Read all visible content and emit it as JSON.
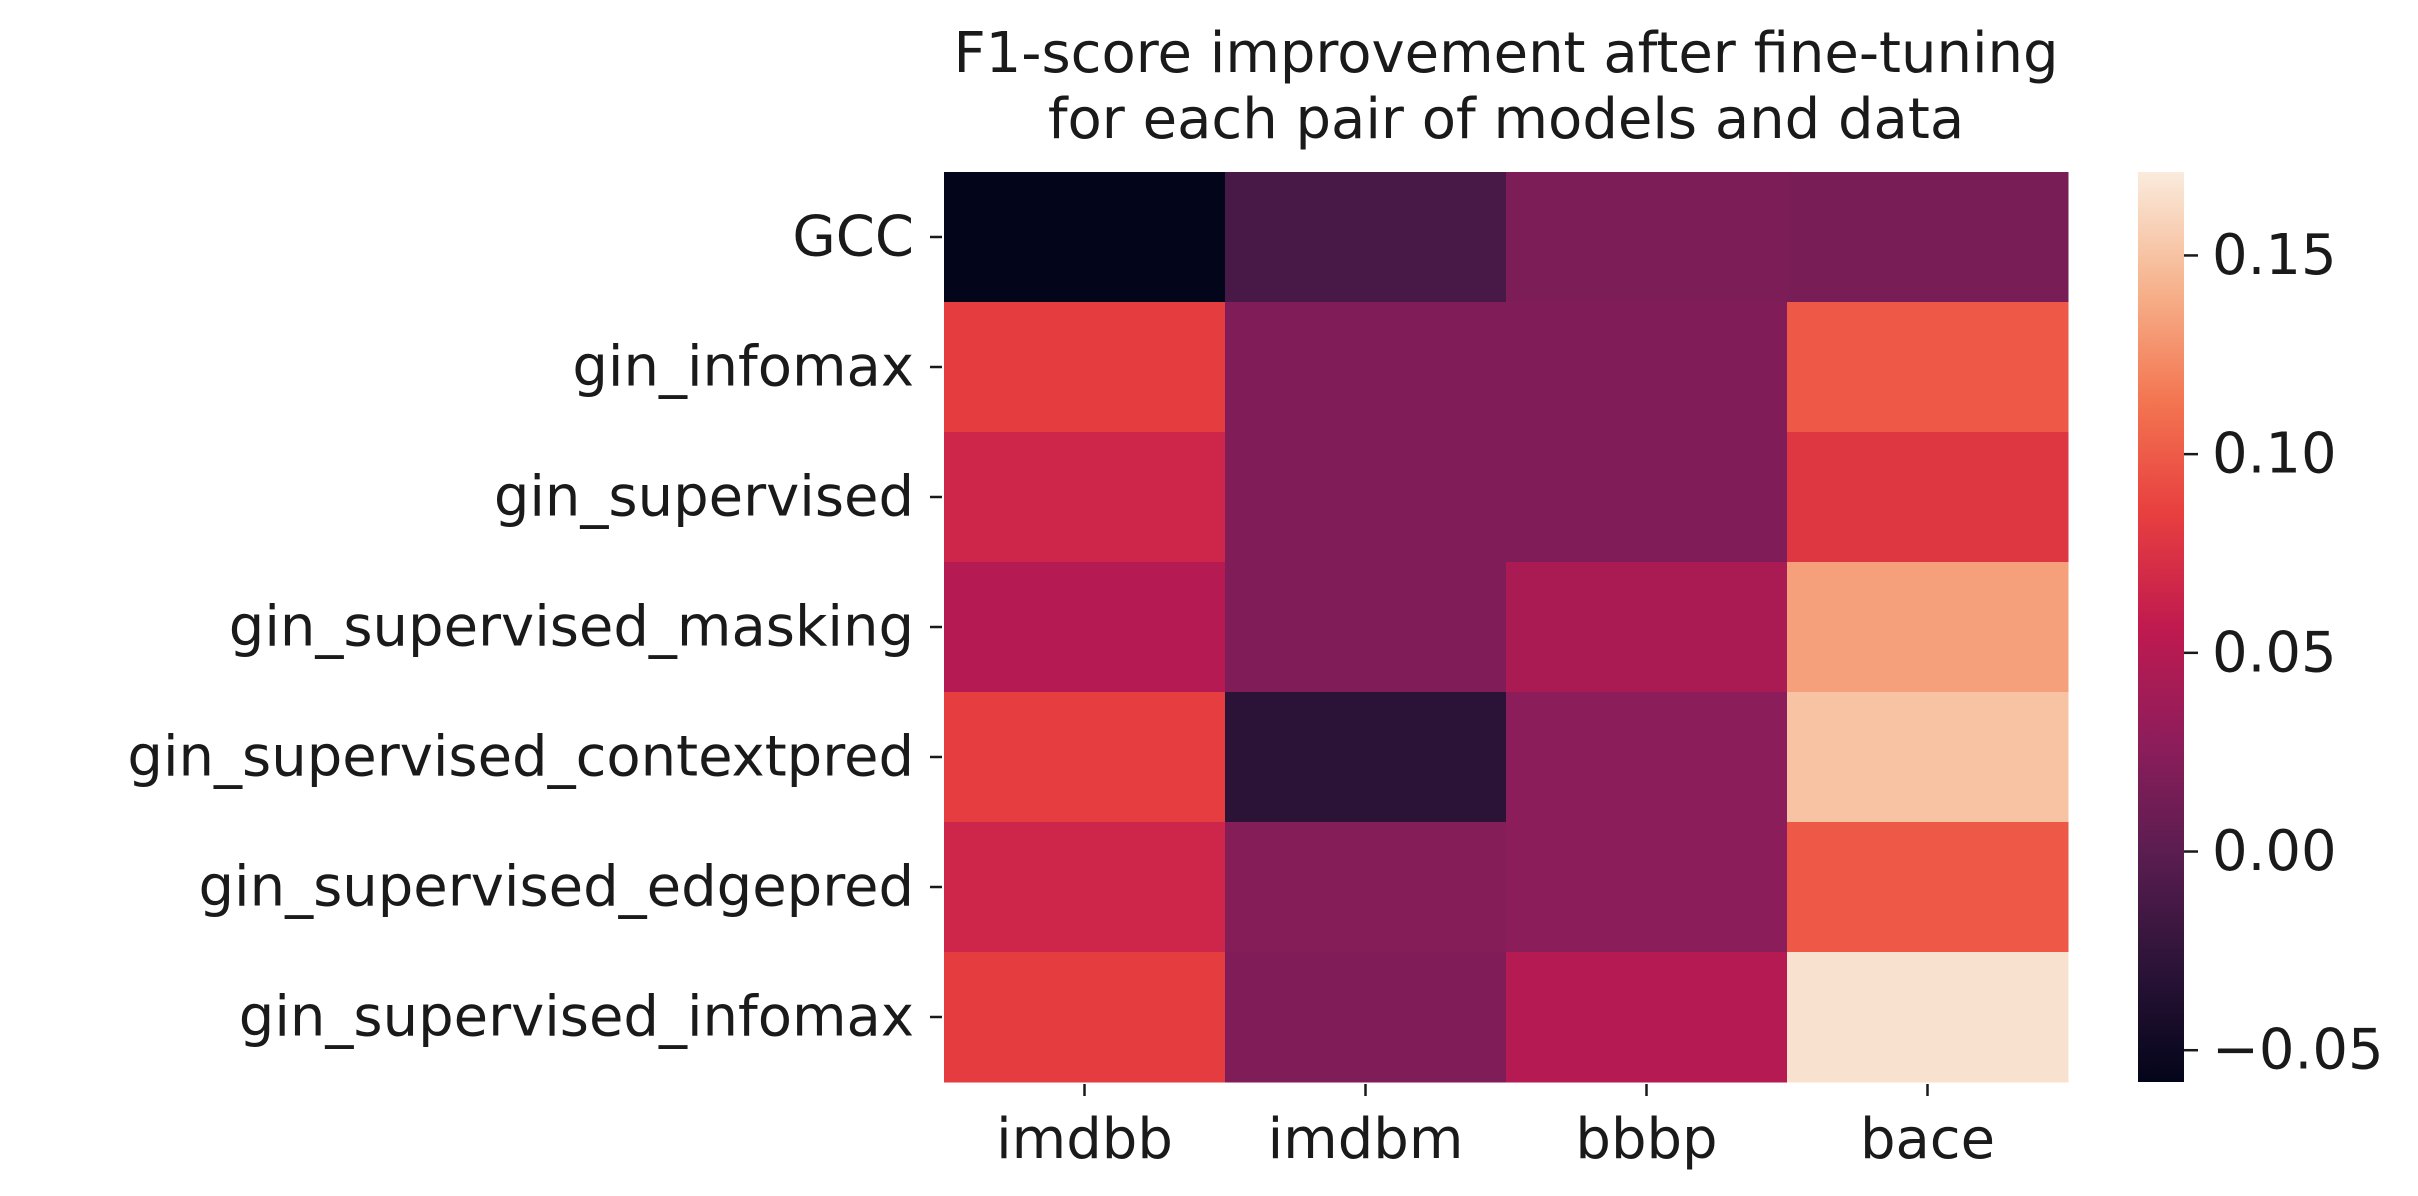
{
  "chart_data": {
    "type": "heatmap",
    "title": "F1-score improvement after fine-tuning\nfor each pair of models and data",
    "xlabel": "",
    "ylabel": "",
    "columns": [
      "imdbb",
      "imdbm",
      "bbbp",
      "bace"
    ],
    "rows": [
      "GCC",
      "gin_infomax",
      "gin_supervised",
      "gin_supervised_masking",
      "gin_supervised_contextpred",
      "gin_supervised_edgepred",
      "gin_supervised_infomax"
    ],
    "values": [
      [
        -0.058,
        -0.012,
        0.018,
        0.016
      ],
      [
        0.083,
        0.02,
        0.02,
        0.098
      ],
      [
        0.066,
        0.02,
        0.02,
        0.079
      ],
      [
        0.05,
        0.02,
        0.044,
        0.133
      ],
      [
        0.084,
        -0.03,
        0.027,
        0.15
      ],
      [
        0.066,
        0.023,
        0.027,
        0.098
      ],
      [
        0.083,
        0.02,
        0.05,
        0.166
      ]
    ],
    "colorbar": {
      "range": [
        -0.058,
        0.171
      ],
      "ticks": [
        -0.05,
        0.0,
        0.05,
        0.1,
        0.15
      ],
      "tick_labels": [
        "−0.05",
        "0.00",
        "0.05",
        "0.10",
        "0.15"
      ],
      "colormap": "rocket"
    },
    "grid": false,
    "legend": "colorbar-right"
  }
}
